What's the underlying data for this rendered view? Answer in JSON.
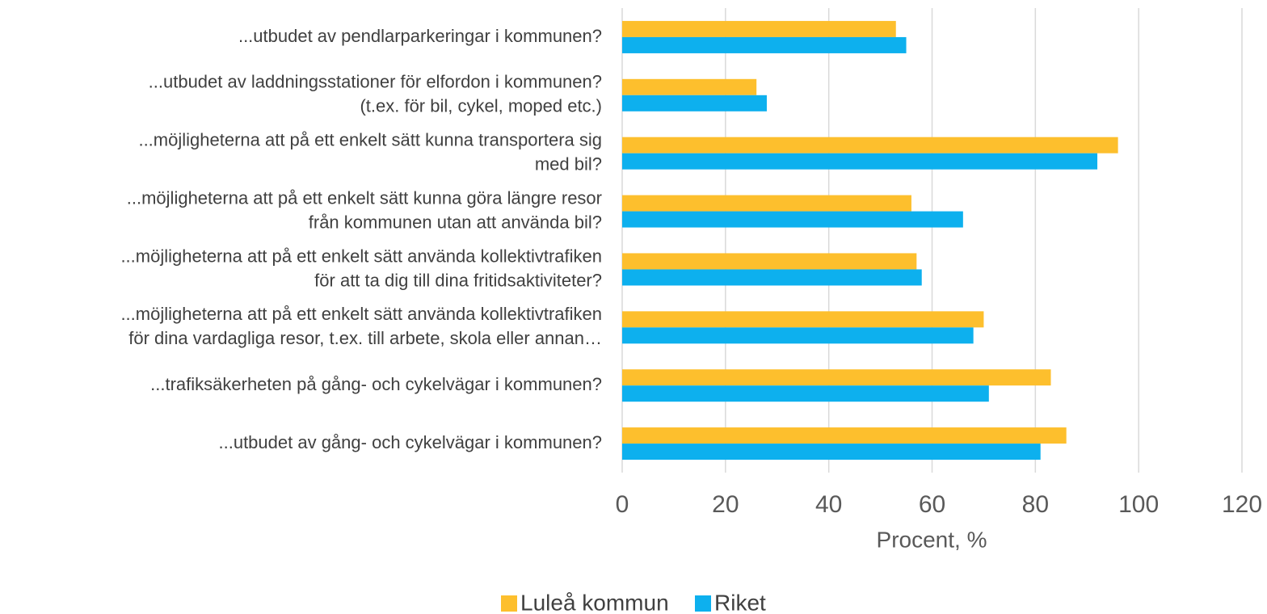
{
  "chart_data": {
    "type": "barh",
    "categories": [
      [
        "...utbudet av pendlarparkeringar i kommunen?"
      ],
      [
        "...utbudet av laddningsstationer för elfordon i kommunen?",
        "(t.ex. för bil, cykel, moped etc.)"
      ],
      [
        "...möjligheterna att på ett enkelt sätt kunna transportera sig",
        "med bil?"
      ],
      [
        "...möjligheterna att på ett enkelt sätt kunna göra längre resor",
        "från kommunen utan att använda bil?"
      ],
      [
        "...möjligheterna att på ett enkelt sätt använda kollektivtrafiken",
        "för att ta dig till dina fritidsaktiviteter?"
      ],
      [
        "...möjligheterna att på ett enkelt sätt använda kollektivtrafiken",
        "för dina vardagliga resor, t.ex. till arbete, skola eller annan…"
      ],
      [
        "...trafiksäkerheten på gång- och cykelvägar i kommunen?"
      ],
      [
        "...utbudet av gång- och cykelvägar i kommunen?"
      ]
    ],
    "series": [
      {
        "name": "Luleå kommun",
        "color": "#FDBF2D",
        "values": [
          53,
          26,
          96,
          56,
          57,
          70,
          83,
          86
        ]
      },
      {
        "name": "Riket",
        "color": "#0DB0EE",
        "values": [
          55,
          28,
          92,
          66,
          58,
          68,
          71,
          81
        ]
      }
    ],
    "xlabel": "Procent, %",
    "xlim": [
      0,
      120
    ],
    "xticks": [
      0,
      20,
      40,
      60,
      80,
      100,
      120
    ],
    "grid": true,
    "legend": "bottom"
  }
}
